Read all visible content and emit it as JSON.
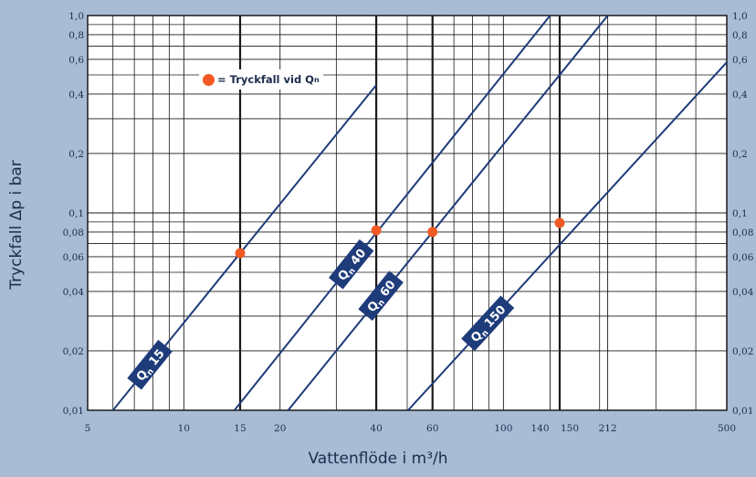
{
  "chart_data": {
    "type": "line",
    "xlabel": "Vattenflöde i m³/h",
    "ylabel": "Tryckfall Δp i bar",
    "xscale": "log",
    "yscale": "log",
    "xlim": [
      5,
      500
    ],
    "ylim": [
      0.01,
      1.0
    ],
    "grid": true,
    "x_ticks": [
      {
        "value": 5,
        "label": "5"
      },
      {
        "value": 10,
        "label": "10"
      },
      {
        "value": 15,
        "label": "15"
      },
      {
        "value": 20,
        "label": "20"
      },
      {
        "value": 40,
        "label": "40"
      },
      {
        "value": 60,
        "label": "60"
      },
      {
        "value": 100,
        "label": "100"
      },
      {
        "value": 140,
        "label": "140"
      },
      {
        "value": 150,
        "label": "150"
      },
      {
        "value": 212,
        "label": "212"
      },
      {
        "value": 500,
        "label": "500"
      }
    ],
    "y_ticks": [
      {
        "value": 0.01,
        "label": "0,01"
      },
      {
        "value": 0.02,
        "label": "0,02"
      },
      {
        "value": 0.04,
        "label": "0,04"
      },
      {
        "value": 0.06,
        "label": "0,06"
      },
      {
        "value": 0.08,
        "label": "0,08"
      },
      {
        "value": 0.1,
        "label": "0,1"
      },
      {
        "value": 0.2,
        "label": "0,2"
      },
      {
        "value": 0.4,
        "label": "0,4"
      },
      {
        "value": 0.6,
        "label": "0,6"
      },
      {
        "value": 0.8,
        "label": "0,8"
      },
      {
        "value": 1.0,
        "label": "1,0"
      }
    ],
    "minor_x": [
      6,
      7,
      8,
      9,
      30,
      50,
      70,
      80,
      90,
      200,
      300,
      400
    ],
    "minor_y": [
      0.03,
      0.05,
      0.07,
      0.09,
      0.3,
      0.5,
      0.7,
      0.9
    ],
    "bold_x": [
      15,
      40,
      60,
      150
    ],
    "series": [
      {
        "name": "Qn 15",
        "name_main": "Q",
        "name_sub": "n",
        "name_rest": " 15",
        "x": [
          6.0,
          40.0
        ],
        "y": [
          0.01,
          0.444
        ]
      },
      {
        "name": "Qn 40",
        "name_main": "Q",
        "name_sub": "n",
        "name_rest": " 40",
        "x": [
          14.4,
          140.0
        ],
        "y": [
          0.01,
          1.0
        ]
      },
      {
        "name": "Qn 60",
        "name_main": "Q",
        "name_sub": "n",
        "name_rest": " 60",
        "x": [
          21.2,
          212.0
        ],
        "y": [
          0.01,
          1.0
        ]
      },
      {
        "name": "Qn 150",
        "name_main": "Q",
        "name_sub": "n",
        "name_rest": " 150",
        "x": [
          50.3,
          500.0
        ],
        "y": [
          0.01,
          0.58
        ]
      }
    ],
    "points": [
      {
        "x": 15,
        "y": 0.0625
      },
      {
        "x": 40,
        "y": 0.0816
      },
      {
        "x": 60,
        "y": 0.0801
      },
      {
        "x": 150,
        "y": 0.0889
      }
    ],
    "legend": {
      "text_main": "= Tryckfall vid Q",
      "text_sub": "n",
      "position": "top-left"
    },
    "colors": {
      "line": "#1e3b7a",
      "grid": "#1a1a1a",
      "point": "#f15a24",
      "badge": "#1e3b7a",
      "plot_bg": "#ffffff",
      "page_bg": "#a9bcd6"
    }
  }
}
